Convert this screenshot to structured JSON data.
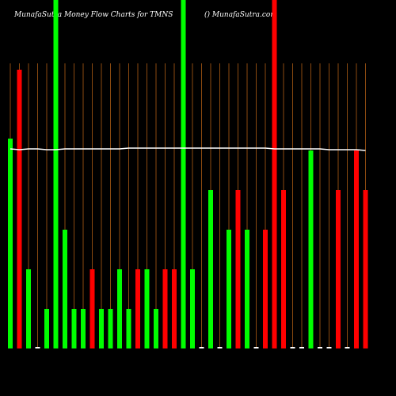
{
  "chart_data": {
    "type": "bar",
    "title": "MunafaSutra  Money Flow  Charts for TMNS",
    "subtitle": "() MunafaSutra.com",
    "categories": [
      null,
      null,
      null,
      null,
      null,
      null,
      null,
      null,
      null,
      null,
      null,
      null,
      null,
      null,
      null,
      null,
      null,
      null,
      null,
      null,
      null,
      null,
      null,
      null,
      null,
      null,
      null,
      null,
      null,
      null,
      null,
      null,
      null,
      null,
      null,
      null,
      null,
      null,
      null,
      null
    ],
    "values": [
      265,
      352,
      100,
      2,
      50,
      440,
      150,
      50,
      50,
      100,
      50,
      50,
      100,
      50,
      100,
      100,
      50,
      100,
      100,
      440,
      100,
      2,
      200,
      2,
      150,
      200,
      150,
      2,
      150,
      440,
      200,
      2,
      2,
      250,
      2,
      2,
      200,
      2,
      250,
      200
    ],
    "colors": [
      "#00ff00",
      "#ff0000",
      "#00ff00",
      "#ffffff",
      "#00ff00",
      "#00ff00",
      "#00ff00",
      "#00ff00",
      "#00ff00",
      "#ff0000",
      "#00ff00",
      "#00ff00",
      "#00ff00",
      "#00ff00",
      "#ff0000",
      "#00ff00",
      "#00ff00",
      "#ff0000",
      "#ff0000",
      "#00ff00",
      "#00ff00",
      "#ffffff",
      "#00ff00",
      "#ffffff",
      "#00ff00",
      "#ff0000",
      "#00ff00",
      "#ffffff",
      "#ff0000",
      "#ff0000",
      "#ff0000",
      "#ffffff",
      "#ffffff",
      "#00ff00",
      "#ffffff",
      "#ffffff",
      "#ff0000",
      "#ffffff",
      "#ff0000",
      "#ff0000"
    ],
    "line_values": [
      252,
      251,
      252,
      252,
      251,
      251,
      252,
      252,
      252,
      252,
      252,
      252,
      252,
      253,
      253,
      253,
      253,
      253,
      253,
      253,
      253,
      253,
      253,
      253,
      253,
      253,
      253,
      253,
      253,
      252,
      252,
      252,
      252,
      252,
      252,
      251,
      251,
      251,
      251,
      250
    ],
    "line_color": "#ffffff",
    "ylim": [
      0,
      440
    ],
    "grid_color": "#8b4a10"
  }
}
